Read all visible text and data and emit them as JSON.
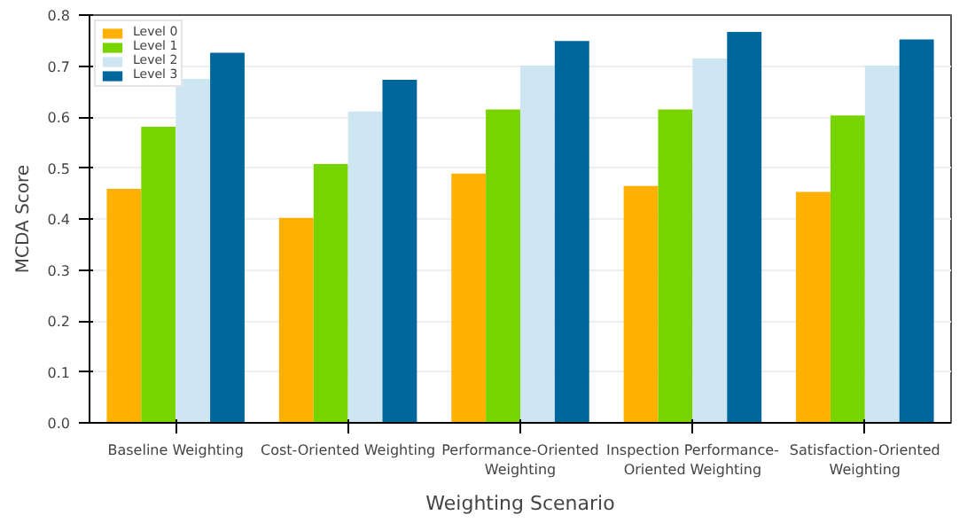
{
  "chart_data": {
    "type": "bar",
    "xlabel": "Weighting Scenario",
    "ylabel": "MCDA Score",
    "categories": [
      "Baseline Weighting",
      "Cost-Oriented Weighting",
      "Performance-Oriented Weighting",
      "Inspection Performance-Oriented Weighting",
      "Satisfaction-Oriented Weighting"
    ],
    "series": [
      {
        "name": "Level 0",
        "color": "#ffb000",
        "values": [
          0.459,
          0.402,
          0.489,
          0.465,
          0.453
        ]
      },
      {
        "name": "Level 1",
        "color": "#77d400",
        "values": [
          0.581,
          0.508,
          0.615,
          0.615,
          0.603
        ]
      },
      {
        "name": "Level 2",
        "color": "#cde6f2",
        "values": [
          0.675,
          0.611,
          0.701,
          0.715,
          0.701
        ]
      },
      {
        "name": "Level 3",
        "color": "#00679c",
        "values": [
          0.726,
          0.673,
          0.749,
          0.767,
          0.752
        ]
      }
    ],
    "ylim": [
      0,
      0.8
    ],
    "yticks": [
      {
        "value": 0,
        "label": "0.0"
      },
      {
        "value": 0.1,
        "label": "0.1"
      },
      {
        "value": 0.2,
        "label": "0.2"
      },
      {
        "value": 0.3,
        "label": "0.3"
      },
      {
        "value": 0.4,
        "label": "0.4"
      },
      {
        "value": 0.5,
        "label": "0.5"
      },
      {
        "value": 0.6,
        "label": "0.6"
      },
      {
        "value": 0.7,
        "label": "0.7"
      },
      {
        "value": 0.8,
        "label": "0.8"
      }
    ],
    "grid": "y",
    "legend": "top left"
  }
}
